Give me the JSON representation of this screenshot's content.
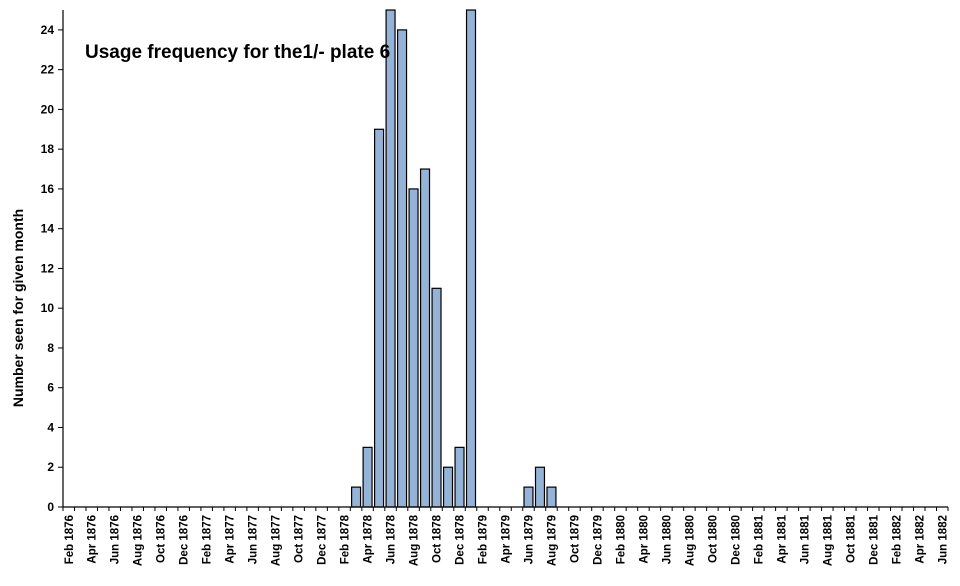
{
  "chart_data": {
    "type": "bar",
    "title": "Usage frequency for the1/- plate 6",
    "xlabel": "",
    "ylabel": "Number seen for given month",
    "ylim": [
      0,
      25
    ],
    "yticks": [
      0,
      2,
      4,
      6,
      8,
      10,
      12,
      14,
      16,
      18,
      20,
      22,
      24
    ],
    "grid": false,
    "legend": "none",
    "bar_color": "#95b3d7",
    "bar_edge_color": "#000000",
    "tick_labels": [
      "Feb 1876",
      "Apr 1876",
      "Jun 1876",
      "Aug 1876",
      "Oct 1876",
      "Dec 1876",
      "Feb 1877",
      "Apr 1877",
      "Jun 1877",
      "Aug 1877",
      "Oct 1877",
      "Dec 1877",
      "Feb 1878",
      "Apr 1878",
      "Jun 1878",
      "Aug 1878",
      "Oct 1878",
      "Dec 1878",
      "Feb 1879",
      "Apr 1879",
      "Jun 1879",
      "Aug 1879",
      "Oct 1879",
      "Dec 1879",
      "Feb 1880",
      "Apr 1880",
      "Jun 1880",
      "Aug 1880",
      "Oct 1880",
      "Dec 1880",
      "Feb 1881",
      "Apr 1881",
      "Jun 1881",
      "Aug 1881",
      "Oct 1881",
      "Dec 1881",
      "Feb 1882",
      "Apr 1882",
      "Jun 1882"
    ],
    "categories": [
      "Feb 1876",
      "Mar 1876",
      "Apr 1876",
      "May 1876",
      "Jun 1876",
      "Jul 1876",
      "Aug 1876",
      "Sep 1876",
      "Oct 1876",
      "Nov 1876",
      "Dec 1876",
      "Jan 1877",
      "Feb 1877",
      "Mar 1877",
      "Apr 1877",
      "May 1877",
      "Jun 1877",
      "Jul 1877",
      "Aug 1877",
      "Sep 1877",
      "Oct 1877",
      "Nov 1877",
      "Dec 1877",
      "Jan 1878",
      "Feb 1878",
      "Mar 1878",
      "Apr 1878",
      "May 1878",
      "Jun 1878",
      "Jul 1878",
      "Aug 1878",
      "Sep 1878",
      "Oct 1878",
      "Nov 1878",
      "Dec 1878",
      "Jan 1879",
      "Feb 1879",
      "Mar 1879",
      "Apr 1879",
      "May 1879",
      "Jun 1879",
      "Jul 1879",
      "Aug 1879",
      "Sep 1879",
      "Oct 1879",
      "Nov 1879",
      "Dec 1879",
      "Jan 1880",
      "Feb 1880",
      "Mar 1880",
      "Apr 1880",
      "May 1880",
      "Jun 1880",
      "Jul 1880",
      "Aug 1880",
      "Sep 1880",
      "Oct 1880",
      "Nov 1880",
      "Dec 1880",
      "Jan 1881",
      "Feb 1881",
      "Mar 1881",
      "Apr 1881",
      "May 1881",
      "Jun 1881",
      "Jul 1881",
      "Aug 1881",
      "Sep 1881",
      "Oct 1881",
      "Nov 1881",
      "Dec 1881",
      "Jan 1882",
      "Feb 1882",
      "Mar 1882",
      "Apr 1882",
      "May 1882",
      "Jun 1882"
    ],
    "values": [
      0,
      0,
      0,
      0,
      0,
      0,
      0,
      0,
      0,
      0,
      0,
      0,
      0,
      0,
      0,
      0,
      0,
      0,
      0,
      0,
      0,
      0,
      0,
      0,
      0,
      1,
      3,
      19,
      25,
      24,
      16,
      17,
      11,
      2,
      3,
      25,
      0,
      0,
      0,
      0,
      1,
      2,
      1,
      0,
      0,
      0,
      0,
      0,
      0,
      0,
      0,
      0,
      0,
      0,
      0,
      0,
      0,
      0,
      0,
      0,
      0,
      0,
      0,
      0,
      0,
      0,
      0,
      0,
      0,
      0,
      0,
      0,
      0,
      0,
      0,
      0,
      0
    ]
  }
}
